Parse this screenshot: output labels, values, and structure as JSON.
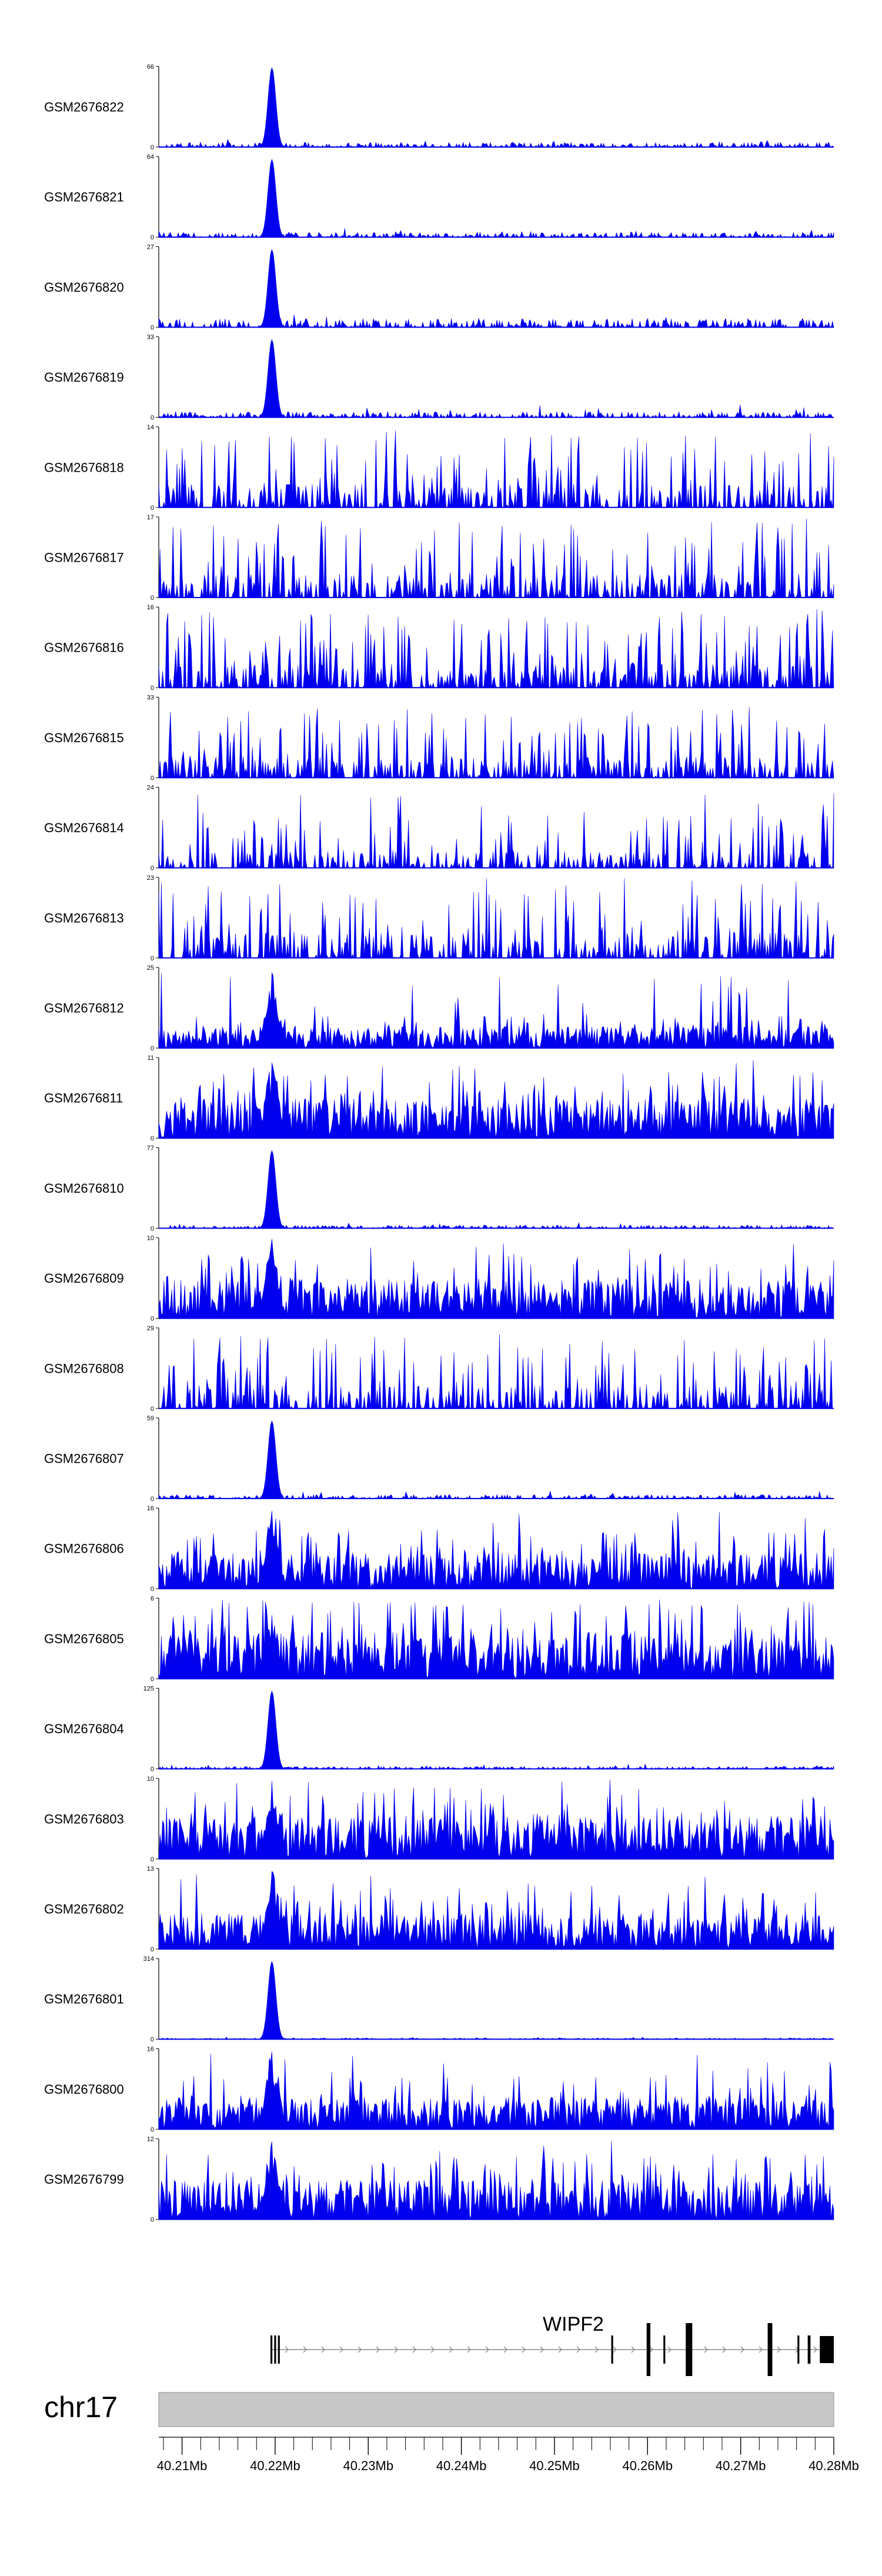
{
  "chart_data": {
    "type": "area",
    "colors": {
      "signal": "#0000ee",
      "ideogram": "#c8c8c8",
      "axis": "#000000",
      "intron": "#888888"
    },
    "tracks": [
      {
        "name": "GSM2676822",
        "ymax": 66,
        "ymin": 0,
        "profile": "peak",
        "seed": 1,
        "base": 0.06,
        "peak_height": 1.0
      },
      {
        "name": "GSM2676821",
        "ymax": 64,
        "ymin": 0,
        "profile": "peak",
        "seed": 2,
        "base": 0.06,
        "peak_height": 0.98
      },
      {
        "name": "GSM2676820",
        "ymax": 27,
        "ymin": 0,
        "profile": "peak",
        "seed": 3,
        "base": 0.11,
        "peak_height": 0.98
      },
      {
        "name": "GSM2676819",
        "ymax": 33,
        "ymin": 0,
        "profile": "peak",
        "seed": 4,
        "base": 0.07,
        "peak_height": 0.98
      },
      {
        "name": "GSM2676818",
        "ymax": 14,
        "ymin": 0,
        "profile": "sparse",
        "seed": 5,
        "base": 0.5
      },
      {
        "name": "GSM2676817",
        "ymax": 17,
        "ymin": 0,
        "profile": "sparse",
        "seed": 6,
        "base": 0.5
      },
      {
        "name": "GSM2676816",
        "ymax": 16,
        "ymin": 0,
        "profile": "sparse",
        "seed": 7,
        "base": 0.5
      },
      {
        "name": "GSM2676815",
        "ymax": 33,
        "ymin": 0,
        "profile": "sparse",
        "seed": 8,
        "base": 0.45
      },
      {
        "name": "GSM2676814",
        "ymax": 24,
        "ymin": 0,
        "profile": "sparse",
        "seed": 9,
        "base": 0.35
      },
      {
        "name": "GSM2676813",
        "ymax": 23,
        "ymin": 0,
        "profile": "sparse",
        "seed": 10,
        "base": 0.55
      },
      {
        "name": "GSM2676812",
        "ymax": 25,
        "ymin": 0,
        "profile": "mixed",
        "seed": 11,
        "base": 0.3,
        "peak_height": 0.95
      },
      {
        "name": "GSM2676811",
        "ymax": 11,
        "ymin": 0,
        "profile": "dense",
        "seed": 12,
        "base": 0.55,
        "peak_height": 0.95
      },
      {
        "name": "GSM2676810",
        "ymax": 77,
        "ymin": 0,
        "profile": "peak",
        "seed": 13,
        "base": 0.04,
        "peak_height": 0.98
      },
      {
        "name": "GSM2676809",
        "ymax": 10,
        "ymin": 0,
        "profile": "dense",
        "seed": 14,
        "base": 0.55,
        "peak_height": 1.0
      },
      {
        "name": "GSM2676808",
        "ymax": 29,
        "ymin": 0,
        "profile": "sparse",
        "seed": 15,
        "base": 0.5
      },
      {
        "name": "GSM2676807",
        "ymax": 59,
        "ymin": 0,
        "profile": "peak",
        "seed": 16,
        "base": 0.05,
        "peak_height": 0.98
      },
      {
        "name": "GSM2676806",
        "ymax": 16,
        "ymin": 0,
        "profile": "dense",
        "seed": 17,
        "base": 0.5,
        "peak_height": 0.98
      },
      {
        "name": "GSM2676805",
        "ymax": 6,
        "ymin": 0,
        "profile": "dense",
        "seed": 18,
        "base": 0.65,
        "peak_height": 0.8
      },
      {
        "name": "GSM2676804",
        "ymax": 125,
        "ymin": 0,
        "profile": "peak",
        "seed": 19,
        "base": 0.03,
        "peak_height": 0.98
      },
      {
        "name": "GSM2676803",
        "ymax": 10,
        "ymin": 0,
        "profile": "dense",
        "seed": 20,
        "base": 0.6,
        "peak_height": 0.98
      },
      {
        "name": "GSM2676802",
        "ymax": 13,
        "ymin": 0,
        "profile": "dense",
        "seed": 21,
        "base": 0.5,
        "peak_height": 0.98
      },
      {
        "name": "GSM2676801",
        "ymax": 314,
        "ymin": 0,
        "profile": "peak",
        "seed": 22,
        "base": 0.015,
        "peak_height": 0.98
      },
      {
        "name": "GSM2676800",
        "ymax": 16,
        "ymin": 0,
        "profile": "dense",
        "seed": 23,
        "base": 0.45,
        "peak_height": 0.98
      },
      {
        "name": "GSM2676799",
        "ymax": 12,
        "ymin": 0,
        "profile": "dense",
        "seed": 24,
        "base": 0.55,
        "peak_height": 0.98
      }
    ],
    "gene": {
      "name": "WIPF2",
      "start_mb": 40.2195,
      "end_mb": 40.28,
      "strand": "+",
      "exons_mb": [
        [
          40.2195,
          40.2197
        ],
        [
          40.2199,
          40.2201
        ],
        [
          40.2203,
          40.2205
        ],
        [
          40.2561,
          40.2563
        ],
        [
          40.2599,
          40.2603
        ],
        [
          40.2617,
          40.2619
        ],
        [
          40.2641,
          40.2648
        ],
        [
          40.2729,
          40.2734
        ],
        [
          40.2761,
          40.2763
        ],
        [
          40.2772,
          40.2775
        ],
        [
          40.2785,
          40.28
        ]
      ]
    },
    "chromosome": "chr17",
    "xlim_mb": [
      40.2075,
      40.28
    ],
    "xtick_labels": [
      "40.21Mb",
      "40.22Mb",
      "40.23Mb",
      "40.24Mb",
      "40.25Mb",
      "40.26Mb",
      "40.27Mb",
      "40.28Mb"
    ],
    "xtick_values_mb": [
      40.21,
      40.22,
      40.23,
      40.24,
      40.25,
      40.26,
      40.27,
      40.28
    ],
    "minor_tick_step_mb": 0.002,
    "peak_center_mb": 40.2196
  }
}
